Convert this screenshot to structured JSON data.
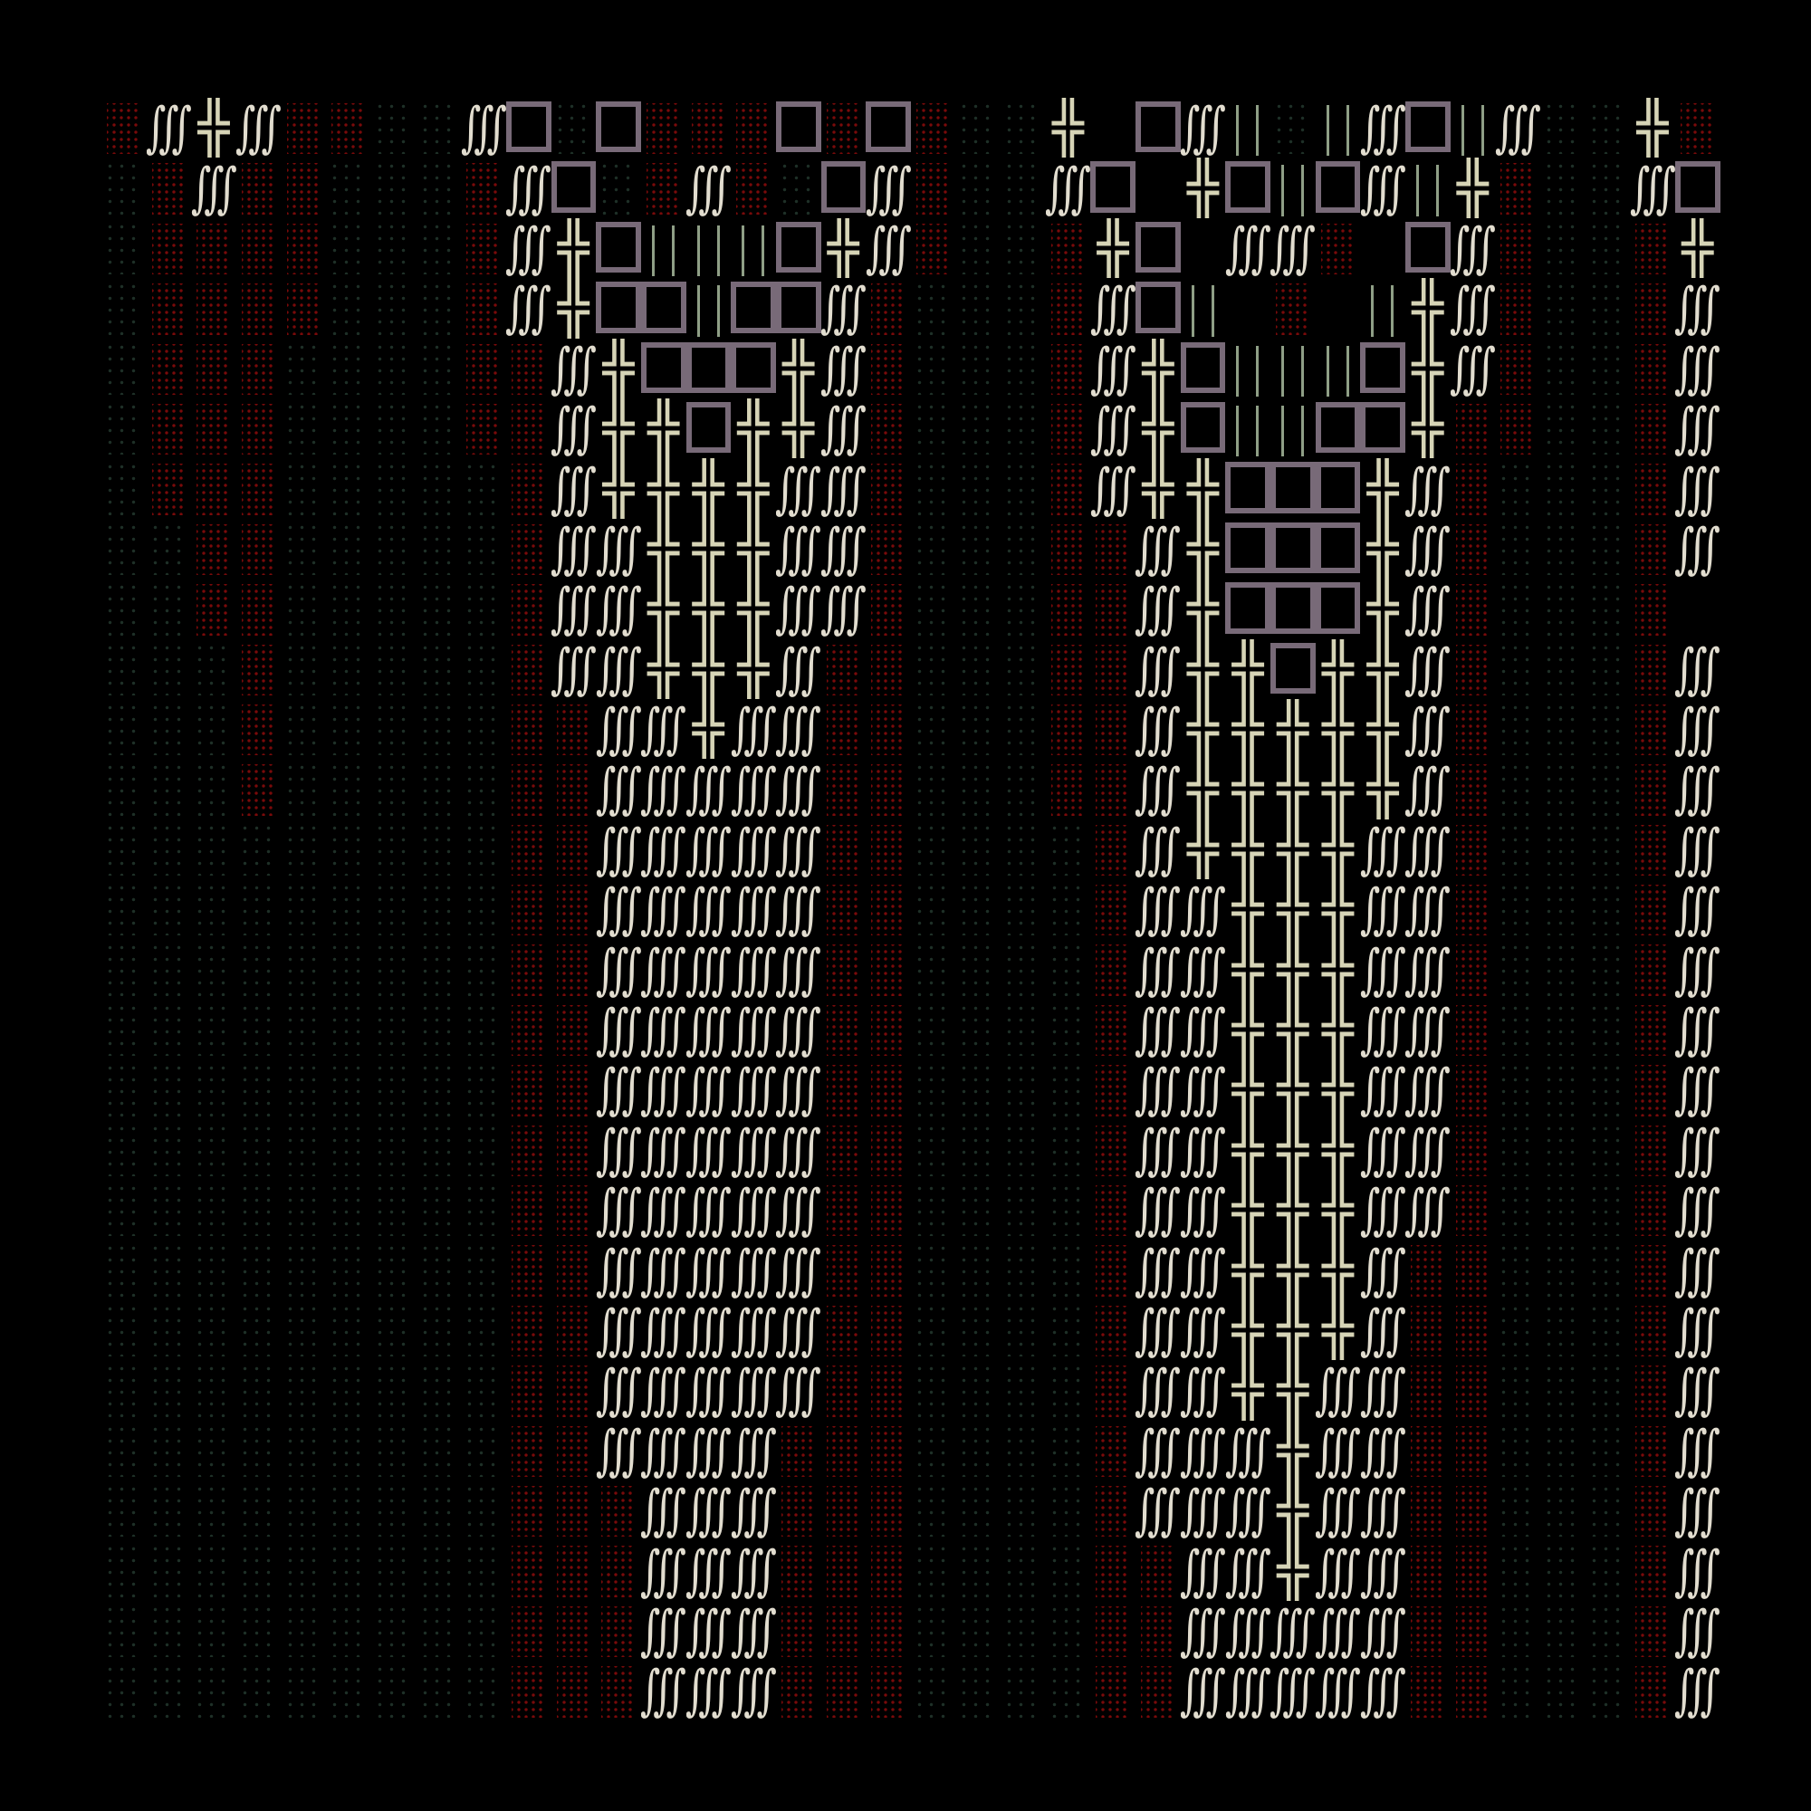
{
  "glyphs": {
    "S": "∭",
    "X": "╬"
  },
  "colors": {
    "background": "#000000",
    "red_dots": "#7a0a0a",
    "green_dots": "#1e3027",
    "integral": "#e2ddcf",
    "cross": "#d6d4b6",
    "box": "#786a78",
    "lines": "#8f9f86"
  },
  "rows": [
    "RSXSRRGGSBGBRRRBRBRGGX.BSLGLSBLSGGXR",
    "GRSRRGGGRSBGRSRGBSRGGSB.XBLBSLXRGGSB",
    "GRRRRGGGRSXBLLLBXSRGGRXB.SSR.BSRGGRX",
    "GRRRRGGGRSXBBLBBSRGGGRSBL.R.LXSRGGRS",
    "GRRRGGGGRRSXBBBXSRGGGRSXBLLLBXSRGGRS",
    "GRRRGGGGRRSXXBXXSRGGGRSXBLLBBXRRGGRS",
    "GRRRGGGGGRSXXXXSSRGGGRSXXBBBXSRGGGRS",
    "GGRRGGGGGRSSXXXSSRGGGRRSXBBBXSRGGGRS",
    "GGRRGGGGGRSSXXXSSRGGGRRSXBBBXSRGGGR.",
    "GGGRGGGGGRSSXXXSRRGGGRRSXXBXXSRGGGRS",
    "GGGRGGGGGRRSSXSSRRGGGRRSXXXXXSRGGGRS",
    "GGGRGGGGGRRSSSSSRRGGGRRSXXXXXSRGGGRS",
    "GGGGGGGGGRRSSSSSRRGGGGRSXXXXSSRGGGRS",
    "GGGGGGGGGRRSSSSSRRGGGGRSSXXXSSRGGGRS",
    "GGGGGGGGGRRSSSSSRRGGGGRSSXXXSSRGGGRS",
    "GGGGGGGGGRRSSSSSRRGGGGRSSXXXSSRGGGRS",
    "GGGGGGGGGRRSSSSSRRGGGGRSSXXXSSRGGGRS",
    "GGGGGGGGGRRSSSSSRRGGGGRSSXXXSSRGGGRS",
    "GGGGGGGGGRRSSSSSRRGGGGRSSXXXSSRGGGRS",
    "GGGGGGGGGRRSSSSSRRGGGGRSSXXXSRRGGGRS",
    "GGGGGGGGGRRSSSSSRRGGGGRSSXXXSRRGGGRS",
    "GGGGGGGGGRRSSSSSRRGGGGRSSXXSSRRGGGRS",
    "GGGGGGGGGRRSSSSRRRGGGGRSSSXSSRRGGGRS",
    "GGGGGGGGGRRRSSSRRRGGGGRSSSXSSRRGGGRS",
    "GGGGGGGGGRRRSSSRRRGGGGRRSSXSSRRGGGRS",
    "GGGGGGGGGRRRSSSRRRGGGGRRSSSSSRRGGGRS",
    "GGGGGGGGGRRRSSSRRRGGGGRRSSSSSRRGGGRS"
  ]
}
